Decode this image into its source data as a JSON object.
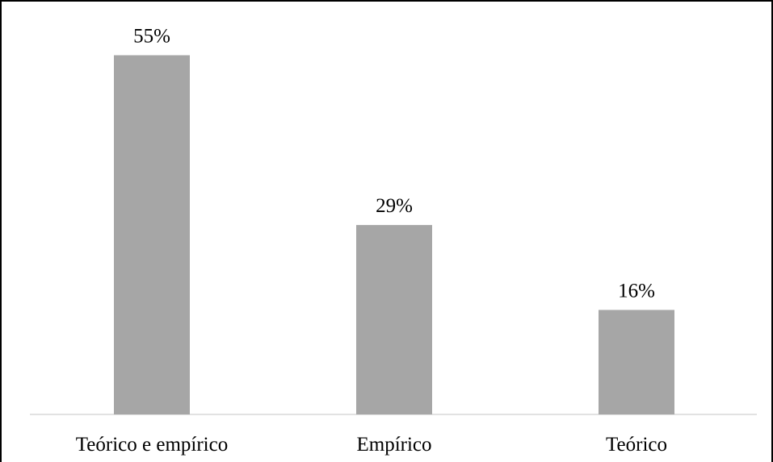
{
  "chart_data": {
    "type": "bar",
    "categories": [
      "Teórico e empírico",
      "Empírico",
      "Teórico"
    ],
    "values": [
      55,
      29,
      16
    ],
    "data_labels": [
      "55%",
      "29%",
      "16%"
    ],
    "title": "",
    "xlabel": "",
    "ylabel": "",
    "ylim": [
      0,
      60
    ],
    "grid": false,
    "legend": "none",
    "colors": {
      "bar": "#a6a6a6",
      "axis": "#d9d9d9",
      "text": "#000000"
    }
  }
}
